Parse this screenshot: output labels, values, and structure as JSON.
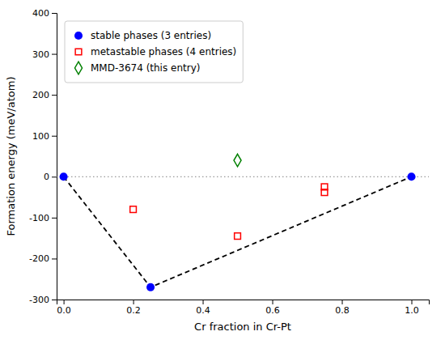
{
  "chart_data": {
    "type": "scatter",
    "xlabel": "Cr fraction in Cr-Pt",
    "ylabel": "Formation energy (meV/atom)",
    "xlim": [
      -0.02,
      1.05
    ],
    "ylim": [
      -300,
      400
    ],
    "xticks": [
      {
        "value": 0.0,
        "label": "0.0"
      },
      0.2,
      0.4,
      0.6,
      0.8,
      {
        "value": 1.0,
        "label": "1.0"
      }
    ],
    "yticks": [
      -300,
      -200,
      -100,
      0,
      100,
      200,
      300,
      400
    ],
    "grid": false,
    "legend": "upper-left",
    "hline": {
      "value": 0.0,
      "color": "gray",
      "line_style": "dotted"
    },
    "series": [
      {
        "type": "line",
        "line_style": "dashed",
        "color": "black",
        "x": [
          0.0,
          0.25,
          1.0
        ],
        "values": [
          0.0,
          -270.0,
          0.0
        ]
      },
      {
        "name": "stable phases (3 entries)",
        "type": "scatter",
        "marker": "circle",
        "color": "#0000ff",
        "x": [
          0.0,
          0.25,
          1.0
        ],
        "values": [
          0.0,
          -270.0,
          0.0
        ]
      },
      {
        "name": "metastable phases (4 entries)",
        "type": "scatter",
        "marker": "square-open",
        "color": "red",
        "x": [
          0.2,
          0.5,
          0.75,
          0.75
        ],
        "values": [
          -80.0,
          -145.0,
          -25.0,
          -38.0
        ]
      },
      {
        "name": "MMD-3674 (this entry)",
        "type": "scatter",
        "marker": "diamond-open",
        "color": "green",
        "x": [
          0.5
        ],
        "values": [
          40.0
        ]
      }
    ]
  }
}
